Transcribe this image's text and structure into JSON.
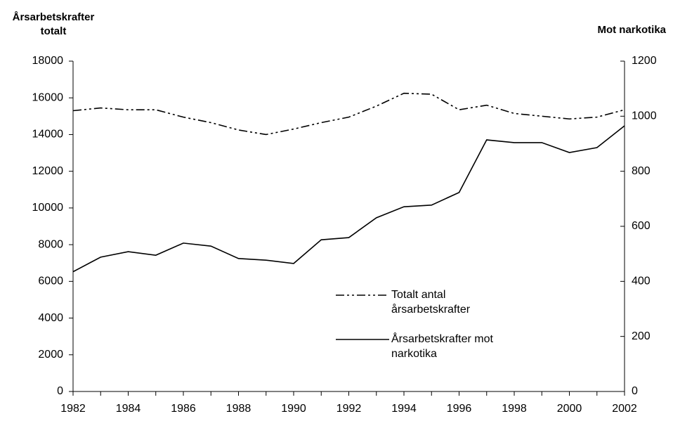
{
  "chart_data": {
    "type": "line",
    "y_label": "Årsarbetskrafter totalt",
    "y2_label": "Mot narkotika",
    "x": [
      1982,
      1983,
      1984,
      1985,
      1986,
      1987,
      1988,
      1989,
      1990,
      1991,
      1992,
      1993,
      1994,
      1995,
      1996,
      1997,
      1998,
      1999,
      2000,
      2001,
      2002
    ],
    "xlim": [
      1982,
      2002
    ],
    "xticks": [
      1982,
      1984,
      1986,
      1988,
      1990,
      1992,
      1994,
      1996,
      1998,
      2000,
      2002
    ],
    "ylim": [
      0,
      18000
    ],
    "yticks": [
      0,
      2000,
      4000,
      6000,
      8000,
      10000,
      12000,
      14000,
      16000,
      18000
    ],
    "y2lim": [
      0,
      1200
    ],
    "y2ticks": [
      0,
      200,
      400,
      600,
      800,
      1000,
      1200
    ],
    "series": [
      {
        "name": "Totalt antal årsarbetskrafter",
        "color": "#000000",
        "style": "dashdot",
        "values": [
          15300,
          15450,
          15350,
          15350,
          14950,
          14650,
          14250,
          14000,
          14300,
          14650,
          14950,
          15550,
          16250,
          16200,
          15350,
          15600,
          15150,
          15000,
          14850,
          14950,
          15350
        ]
      },
      {
        "name": "Årsarbetskrafter mot narkotika",
        "color": "#000000",
        "style": "solid",
        "axis": "y2",
        "values": [
          435,
          488,
          508,
          495,
          539,
          528,
          483,
          477,
          465,
          551,
          559,
          631,
          671,
          677,
          723,
          914,
          904,
          904,
          868,
          886,
          965
        ]
      }
    ]
  }
}
